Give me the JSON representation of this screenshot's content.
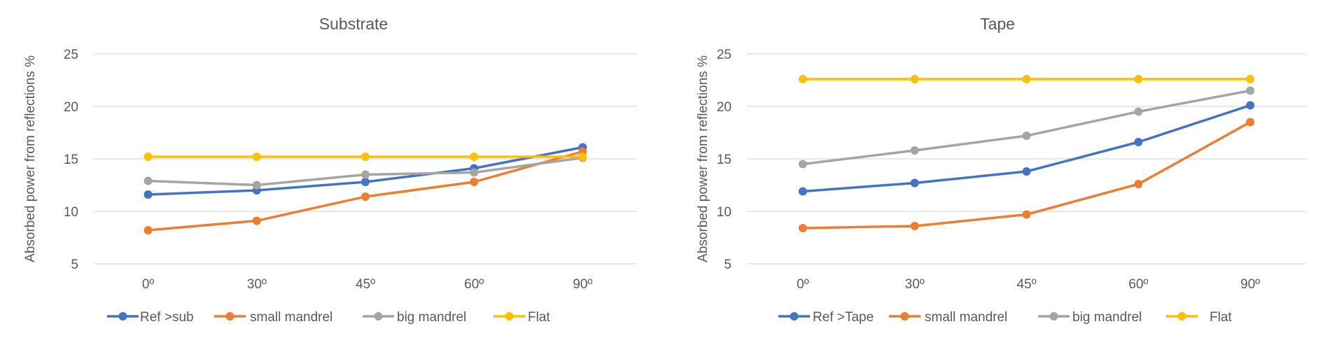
{
  "chart_data": [
    {
      "type": "line",
      "title": "Substrate",
      "xlabel": "",
      "ylabel": "Absorbed power from reflections %",
      "categories": [
        "0º",
        "30º",
        "45º",
        "60º",
        "90º"
      ],
      "ylim": [
        5,
        25
      ],
      "yticks": [
        5,
        10,
        15,
        20,
        25
      ],
      "grid": true,
      "legend": "bottom",
      "series": [
        {
          "name": "Ref >sub",
          "color": "#4472C4",
          "values": [
            11.6,
            12.0,
            12.8,
            14.1,
            16.1
          ]
        },
        {
          "name": "small mandrel",
          "color": "#ED7D31",
          "values": [
            8.2,
            9.1,
            11.4,
            12.8,
            15.7
          ]
        },
        {
          "name": "big mandrel",
          "color": "#A5A5A5",
          "values": [
            12.9,
            12.5,
            13.5,
            13.7,
            15.1
          ]
        },
        {
          "name": "Flat",
          "color": "#FFC000",
          "values": [
            15.2,
            15.2,
            15.2,
            15.2,
            15.2
          ]
        }
      ]
    },
    {
      "type": "line",
      "title": "Tape",
      "xlabel": "",
      "ylabel": "Absorbed power from reflections %",
      "categories": [
        "0º",
        "30º",
        "45º",
        "60º",
        "90º"
      ],
      "ylim": [
        5,
        25
      ],
      "yticks": [
        5,
        10,
        15,
        20,
        25
      ],
      "grid": true,
      "legend": "bottom",
      "series": [
        {
          "name": "Ref >Tape",
          "color": "#4472C4",
          "values": [
            11.9,
            12.7,
            13.8,
            16.6,
            20.1
          ]
        },
        {
          "name": "small mandrel",
          "color": "#ED7D31",
          "values": [
            8.4,
            8.6,
            9.7,
            12.6,
            18.5
          ]
        },
        {
          "name": "big mandrel",
          "color": "#A5A5A5",
          "values": [
            14.5,
            15.8,
            17.2,
            19.5,
            21.5
          ]
        },
        {
          "name": "Flat",
          "color": "#FFC000",
          "values": [
            22.6,
            22.6,
            22.6,
            22.6,
            22.6
          ]
        }
      ]
    }
  ]
}
